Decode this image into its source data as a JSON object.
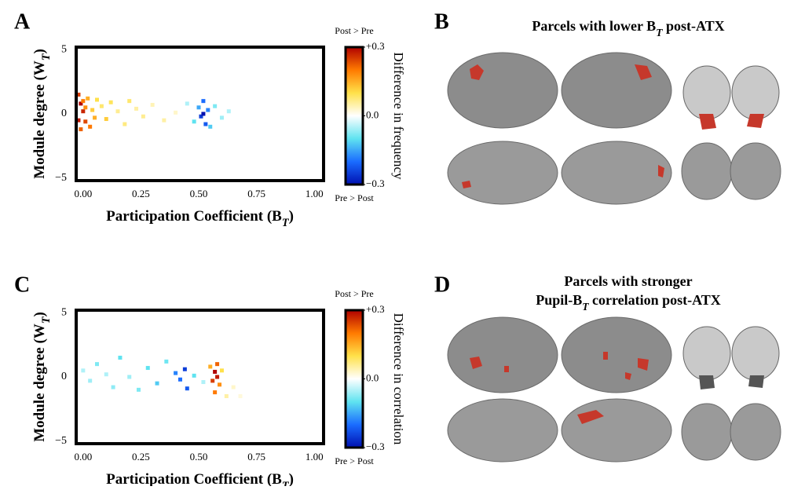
{
  "chart_data": [
    {
      "type": "heatmap",
      "panel_label": "A",
      "ylabel": [
        "Module degree (W",
        "T",
        ")"
      ],
      "xlabel": [
        "Participation Coefficient (B",
        "T",
        ")"
      ],
      "xlim": [
        -0.03,
        1.04
      ],
      "ylim": [
        -5.2,
        5.2
      ],
      "xticks": [
        {
          "value": 0,
          "label": "0.00"
        },
        {
          "value": 0.25,
          "label": "0.25"
        },
        {
          "value": 0.5,
          "label": "0.50"
        },
        {
          "value": 0.75,
          "label": "0.75"
        },
        {
          "value": 1,
          "label": "1.00"
        }
      ],
      "yticks": [
        5,
        0,
        {
          "value": -5,
          "label": "−5"
        }
      ],
      "x": [
        -0.02,
        -0.02,
        -0.01,
        -0.01,
        0.0,
        0.0,
        0.01,
        0.01,
        0.02,
        0.03,
        0.04,
        0.05,
        0.06,
        0.08,
        0.1,
        0.12,
        0.15,
        0.18,
        0.2,
        0.23,
        0.26,
        0.3,
        0.35,
        0.4,
        0.45,
        0.48,
        0.5,
        0.51,
        0.52,
        0.52,
        0.53,
        0.54,
        0.55,
        0.57,
        0.6,
        0.63
      ],
      "y": [
        1.5,
        -0.5,
        0.8,
        -1.2,
        0.2,
        1.0,
        -0.6,
        0.5,
        1.2,
        -1.0,
        0.3,
        -0.3,
        1.1,
        0.6,
        -0.4,
        0.9,
        0.2,
        -0.8,
        1.0,
        0.4,
        -0.2,
        0.7,
        -0.5,
        0.1,
        0.8,
        -0.6,
        0.5,
        -0.2,
        1.0,
        0.0,
        -0.8,
        0.3,
        -1.0,
        0.6,
        -0.3,
        0.2
      ],
      "values": [
        0.25,
        0.28,
        0.3,
        0.22,
        0.27,
        0.2,
        0.24,
        0.18,
        0.15,
        0.2,
        0.12,
        0.15,
        0.1,
        0.08,
        0.12,
        0.09,
        0.06,
        0.07,
        0.08,
        0.05,
        0.06,
        0.04,
        0.05,
        0.03,
        -0.05,
        -0.1,
        -0.15,
        -0.25,
        -0.2,
        -0.3,
        -0.22,
        -0.18,
        -0.12,
        -0.08,
        -0.06,
        -0.05
      ],
      "clim": [
        -0.3,
        0.3
      ],
      "colormap": [
        "#0010b0",
        "#1a6cff",
        "#5fe3f0",
        "#ffffff",
        "#ffe14a",
        "#ff7a00",
        "#b00000"
      ],
      "cticks": [
        {
          "value": 0.3,
          "label": "+0.3"
        },
        {
          "value": 0,
          "label": "0.0"
        },
        {
          "value": -0.3,
          "label": "−0.3"
        }
      ],
      "colorbar_label": "Difference in frequency",
      "colorbar_top": "Post > Pre",
      "colorbar_bottom": "Pre > Post"
    },
    {
      "type": "heatmap",
      "panel_label": "C",
      "ylabel": [
        "Module degree (W",
        "T",
        ")"
      ],
      "xlabel": [
        "Participation Coefficient (B",
        "T",
        ")"
      ],
      "xlim": [
        -0.03,
        1.04
      ],
      "ylim": [
        -5.2,
        5.2
      ],
      "xticks": [
        {
          "value": 0,
          "label": "0.00"
        },
        {
          "value": 0.25,
          "label": "0.25"
        },
        {
          "value": 0.5,
          "label": "0.50"
        },
        {
          "value": 0.75,
          "label": "0.75"
        },
        {
          "value": 1,
          "label": "1.00"
        }
      ],
      "yticks": [
        5,
        0,
        {
          "value": -5,
          "label": "−5"
        }
      ],
      "x": [
        0.0,
        0.03,
        0.06,
        0.1,
        0.13,
        0.16,
        0.2,
        0.24,
        0.28,
        0.32,
        0.36,
        0.4,
        0.42,
        0.44,
        0.45,
        0.48,
        0.52,
        0.55,
        0.56,
        0.57,
        0.57,
        0.58,
        0.58,
        0.59,
        0.6,
        0.62,
        0.65,
        0.68
      ],
      "y": [
        0.5,
        -0.3,
        1.0,
        0.2,
        -0.8,
        1.5,
        0.0,
        -1.0,
        0.7,
        -0.5,
        1.2,
        0.3,
        -0.2,
        0.6,
        -0.9,
        0.1,
        -0.4,
        0.8,
        -0.3,
        0.4,
        -1.2,
        1.0,
        0.0,
        -0.6,
        0.5,
        -1.5,
        -0.8,
        -1.5
      ],
      "values": [
        -0.05,
        -0.06,
        -0.08,
        -0.05,
        -0.07,
        -0.1,
        -0.06,
        -0.08,
        -0.1,
        -0.12,
        -0.09,
        -0.18,
        -0.2,
        -0.25,
        -0.22,
        -0.1,
        -0.05,
        0.15,
        0.25,
        0.3,
        0.2,
        0.22,
        0.28,
        0.18,
        0.1,
        0.05,
        0.03,
        0.02
      ],
      "clim": [
        -0.3,
        0.3
      ],
      "colormap": [
        "#0010b0",
        "#1a6cff",
        "#5fe3f0",
        "#ffffff",
        "#ffe14a",
        "#ff7a00",
        "#b00000"
      ],
      "cticks": [
        {
          "value": 0.3,
          "label": "+0.3"
        },
        {
          "value": 0,
          "label": "0.0"
        },
        {
          "value": -0.3,
          "label": "−0.3"
        }
      ],
      "colorbar_label": "Difference in correlation",
      "colorbar_top": "Post > Pre",
      "colorbar_bottom": "Pre > Post"
    }
  ],
  "brain_panels": [
    {
      "label": "B",
      "title_lines": [
        [
          "Parcels with lower B",
          "T",
          " post-ATX"
        ]
      ]
    },
    {
      "label": "D",
      "title_lines": [
        [
          "Parcels with stronger"
        ],
        [
          "Pupil-B",
          "T",
          " correlation post-ATX"
        ]
      ]
    }
  ]
}
